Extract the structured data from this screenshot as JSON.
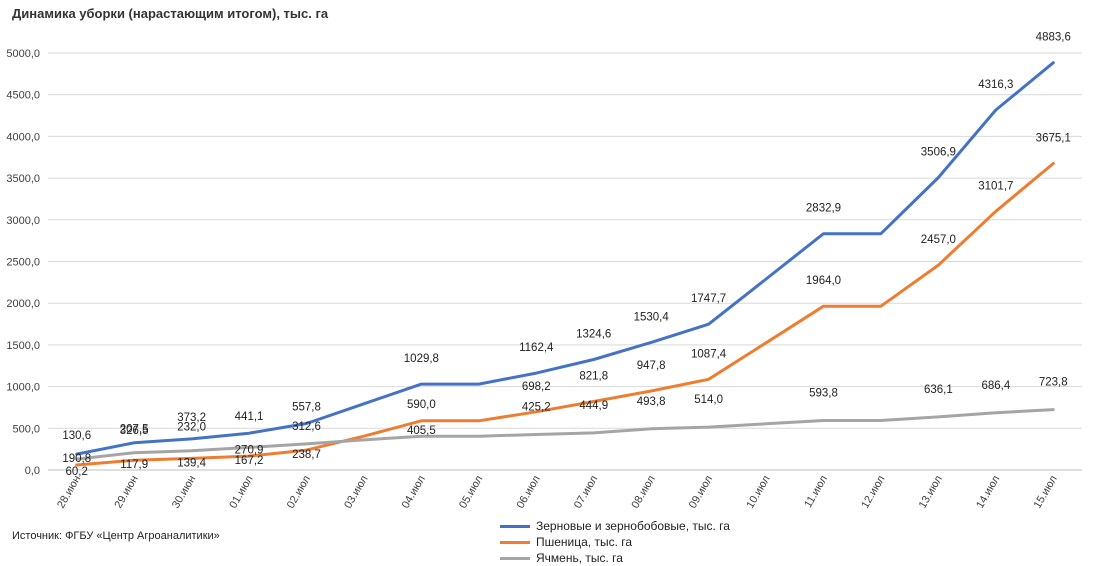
{
  "title": "Динамика уборки (нарастающим итогом), тыс. га",
  "source": "Источник: ФГБУ «Центр Агроаналитики»",
  "chart_data": {
    "type": "line",
    "title": "Динамика уборки (нарастающим итогом), тыс. га",
    "xlabel": "",
    "ylabel": "",
    "ylim": [
      0,
      5000
    ],
    "yticks": [
      "0,0",
      "500,0",
      "1000,0",
      "1500,0",
      "2000,0",
      "2500,0",
      "3000,0",
      "3500,0",
      "4000,0",
      "4500,0",
      "5000,0"
    ],
    "grid": true,
    "legend_position": "bottom",
    "categories": [
      "28.июн",
      "29.июн",
      "30.июн",
      "01.июл",
      "02.июл",
      "03.июл",
      "04.июл",
      "05.июл",
      "06.июл",
      "07.июл",
      "08.июл",
      "09.июл",
      "10.июл",
      "11.июл",
      "12.июл",
      "13.июл",
      "14.июл",
      "15.июл"
    ],
    "series": [
      {
        "name": "Зерновые и зернобобовые,  тыс. га",
        "color": "#4472C4",
        "values": [
          190.8,
          326.5,
          373.2,
          441.1,
          557.8,
          793.8,
          1029.8,
          1029.8,
          1162.4,
          1324.6,
          1530.4,
          1747.7,
          2290.3,
          2832.9,
          2832.9,
          3506.9,
          4316.3,
          4883.6
        ],
        "labels": [
          "190,8",
          "326,5",
          "373,2",
          "441,1",
          "557,8",
          null,
          "1029,8",
          null,
          "1162,4",
          "1324,6",
          "1530,4",
          "1747,7",
          null,
          "2832,9",
          null,
          "3506,9",
          "4316,3",
          "4883,6"
        ]
      },
      {
        "name": "Пшеница, тыс. га",
        "color": "#ED7D31",
        "values": [
          60.2,
          117.9,
          139.4,
          167.2,
          238.7,
          405.5,
          590.0,
          590.0,
          698.2,
          821.8,
          947.8,
          1087.4,
          1525.7,
          1964.0,
          1964.0,
          2457.0,
          3101.7,
          3675.1
        ],
        "labels": [
          "60,2",
          "117,9",
          "139,4",
          "167,2",
          "238,7",
          null,
          "590,0",
          null,
          "698,2",
          "821,8",
          "947,8",
          "1087,4",
          null,
          "1964,0",
          null,
          "2457,0",
          "3101,7",
          "3675,1"
        ]
      },
      {
        "name": "Ячмень, тыс. га",
        "color": "#A5A5A5",
        "values": [
          130.6,
          207.5,
          232.0,
          270.9,
          312.6,
          361.1,
          405.5,
          405.5,
          425.2,
          444.9,
          493.8,
          514.0,
          553.9,
          593.8,
          593.8,
          636.1,
          686.4,
          723.8
        ],
        "labels": [
          "130,6",
          "207,5",
          "232,0",
          "270,9",
          "312,6",
          null,
          "405,5",
          null,
          "425,2",
          "444,9",
          "493,8",
          "514,0",
          null,
          "593,8",
          null,
          "636,1",
          "686,4",
          "723,8"
        ]
      }
    ]
  }
}
